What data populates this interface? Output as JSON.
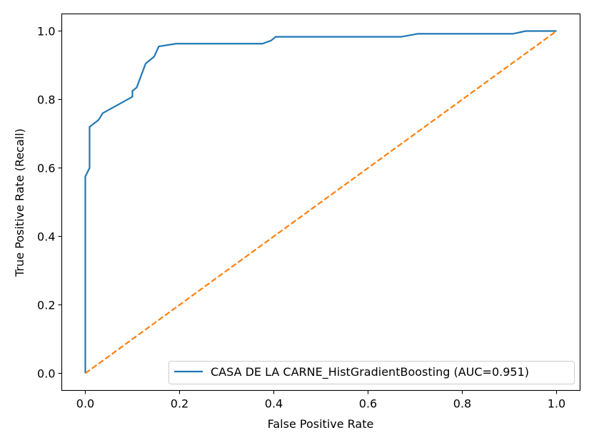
{
  "chart_data": {
    "type": "line",
    "title": "",
    "xlabel": "False Positive Rate",
    "ylabel": "True Positive Rate (Recall)",
    "xlim": [
      -0.05,
      1.05
    ],
    "ylim": [
      -0.05,
      1.05
    ],
    "xticks": [
      0.0,
      0.2,
      0.4,
      0.6,
      0.8,
      1.0
    ],
    "yticks": [
      0.0,
      0.2,
      0.4,
      0.6,
      0.8,
      1.0
    ],
    "xtick_labels": [
      "0.0",
      "0.2",
      "0.4",
      "0.6",
      "0.8",
      "1.0"
    ],
    "ytick_labels": [
      "0.0",
      "0.2",
      "0.4",
      "0.6",
      "0.8",
      "1.0"
    ],
    "grid": false,
    "legend_position": "lower-right",
    "series": [
      {
        "name": "CASA DE LA CARNE_HistGradientBoosting (AUC=0.951)",
        "color": "#1f77b4",
        "style": "solid",
        "x": [
          0.0,
          0.0,
          0.0,
          0.009,
          0.009,
          0.009,
          0.028,
          0.037,
          0.1,
          0.1,
          0.109,
          0.128,
          0.146,
          0.156,
          0.193,
          0.376,
          0.394,
          0.404,
          0.67,
          0.706,
          0.908,
          0.935,
          0.982,
          1.0
        ],
        "y": [
          0.0,
          0.0,
          0.575,
          0.6,
          0.6,
          0.72,
          0.74,
          0.76,
          0.808,
          0.825,
          0.835,
          0.905,
          0.925,
          0.955,
          0.963,
          0.963,
          0.972,
          0.983,
          0.983,
          0.992,
          0.992,
          1.0,
          1.0,
          1.0
        ]
      },
      {
        "color": "#ff7f0e",
        "style": "dashed",
        "x": [
          0.0,
          1.0
        ],
        "y": [
          0.0,
          1.0
        ]
      }
    ]
  }
}
